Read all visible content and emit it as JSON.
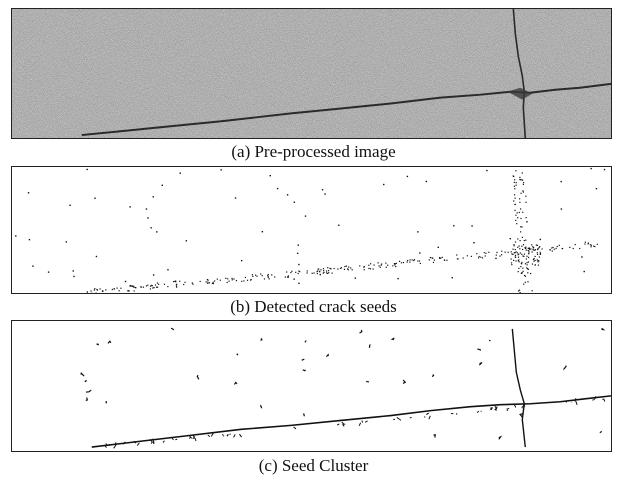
{
  "figure": {
    "panels": [
      {
        "caption": "(a) Pre-processed image"
      },
      {
        "caption": "(b) Detected crack seeds"
      },
      {
        "caption": "(c) Seed Cluster"
      }
    ]
  }
}
